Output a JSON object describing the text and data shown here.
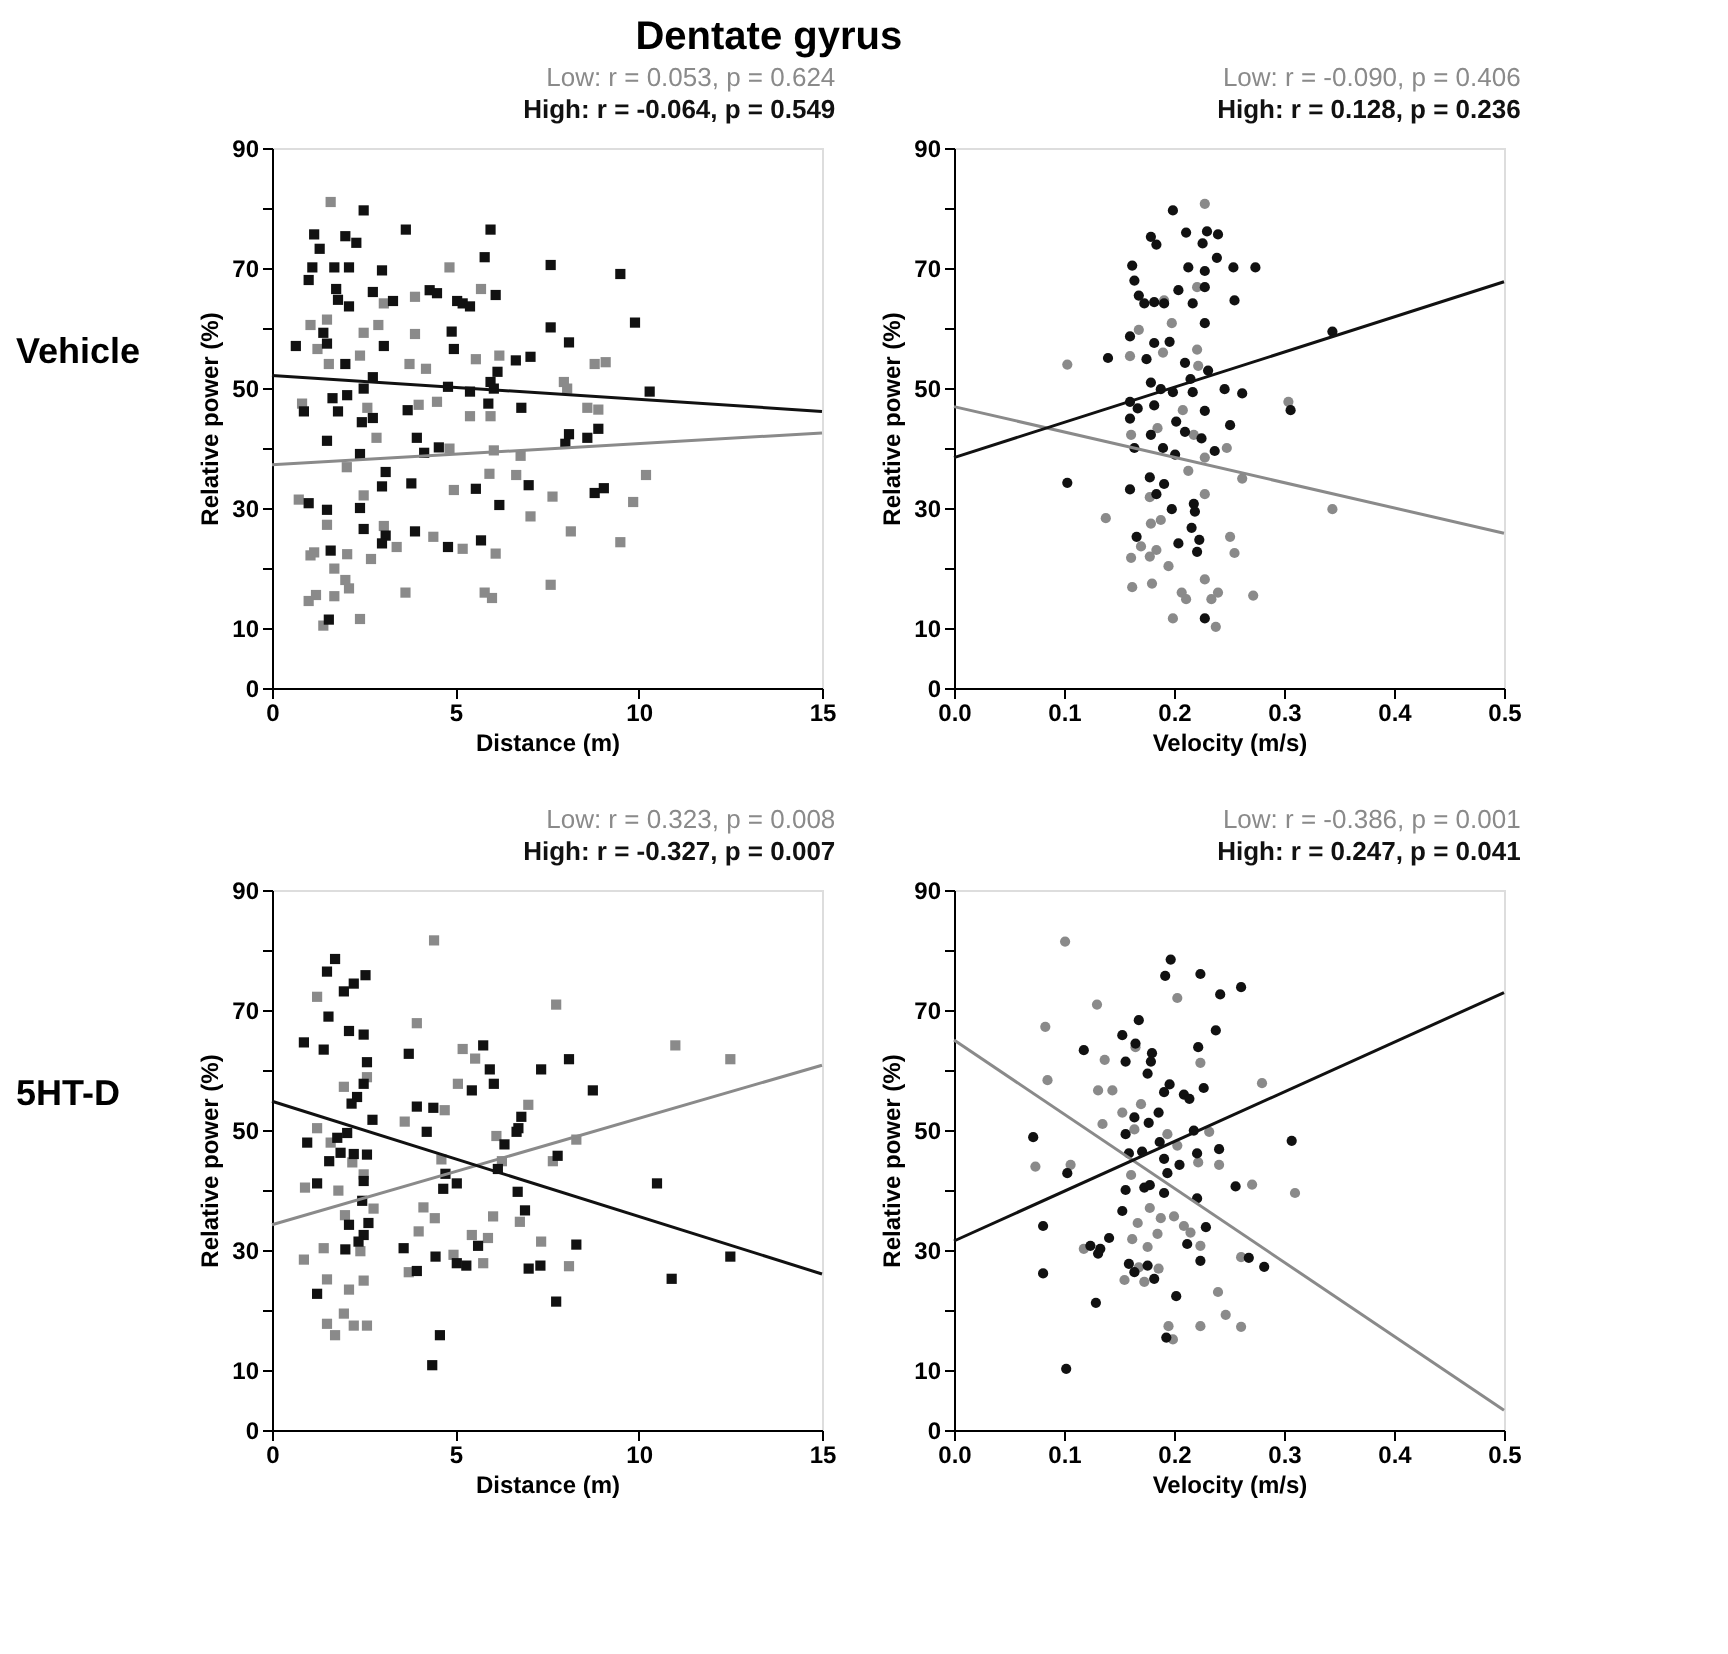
{
  "chart_data": [
    {
      "type": "scatter",
      "title": "Dentate gyrus",
      "annotations": [
        "Vehicle"
      ],
      "xlabel": "Distance (m)",
      "ylabel": "Relative power (%)",
      "marker": "square",
      "grid": false,
      "xlim": [
        0,
        15
      ],
      "xticks": [
        0,
        5,
        10,
        15
      ],
      "ylim": [
        0,
        90
      ],
      "yticks": [
        0,
        10,
        {
          "value": 20,
          "label": null
        },
        30,
        {
          "value": 40,
          "label": null
        },
        50,
        {
          "value": 60,
          "label": null
        },
        70,
        {
          "value": 80,
          "label": null
        },
        90
      ],
      "series": [
        {
          "name": "Low: r = 0.053, p = 0.624",
          "color": "#8a8a8a",
          "x": [
            1.6,
            4.84,
            5.7,
            3.9,
            3.05,
            1.05,
            1.5,
            2.5,
            2.9,
            3.9,
            1.24,
            2.4,
            1.55,
            3.75,
            4.2,
            5.56,
            6.2,
            8.8,
            9.1,
            7.96,
            8.05,
            0.82,
            2.6,
            4,
            4.5,
            5.96,
            5.4,
            8.6,
            8.9,
            2.85,
            4.84,
            6.05,
            6.78,
            2.04,
            5.93,
            6.66,
            10.2,
            2.5,
            4.96,
            0.73,
            1.5,
            3.05,
            7.05,
            7.65,
            8.15,
            9.85,
            9.5,
            1.05,
            1.15,
            2.05,
            2.7,
            3.4,
            4.4,
            5.2,
            6.1,
            1.7,
            2.0,
            2.1,
            1.0,
            1.2,
            1.7,
            2.4,
            1.4,
            3.64,
            5.8,
            6.0,
            7.6
          ],
          "values": [
            81,
            70.1,
            66.5,
            65.2,
            64.1,
            60.5,
            61.4,
            59.2,
            60.5,
            59,
            56.5,
            55.4,
            54,
            54,
            53.2,
            54.8,
            55.4,
            54,
            54.3,
            51,
            49.9,
            47.4,
            46.7,
            47.2,
            47.7,
            45.3,
            45.3,
            46.7,
            46.4,
            41.7,
            39.9,
            39.6,
            38.7,
            36.8,
            35.7,
            35.5,
            35.5,
            32.1,
            33,
            31.4,
            27.2,
            27,
            28.6,
            31.9,
            26.1,
            31,
            24.3,
            22.1,
            22.6,
            22.3,
            21.5,
            23.5,
            25.2,
            23.2,
            22.4,
            19.9,
            18,
            16.6,
            14.5,
            15.5,
            15.3,
            11.5,
            10.4,
            15.9,
            15.9,
            15,
            17.2
          ]
        },
        {
          "name": "High: r = -0.064, p = 0.549",
          "color": "#111111",
          "x": [
            2.5,
            1.15,
            2.0,
            2.3,
            1.3,
            3.65,
            5.96,
            5.8,
            7.6,
            9.5,
            1.1,
            1.7,
            2.1,
            3.0,
            1.0,
            1.75,
            1.8,
            2.1,
            2.75,
            3.3,
            4.3,
            4.5,
            5.05,
            5.2,
            5.4,
            6.1,
            9.9,
            7.6,
            4.9,
            4.96,
            8.1,
            3.05,
            0.65,
            1.4,
            1.5,
            2.0,
            6.65,
            7.05,
            2.75,
            2.5,
            6.15,
            5.96,
            6.05,
            4.8,
            5.4,
            5.9,
            10.3,
            1.65,
            0.87,
            1.8,
            2.05,
            2.45,
            2.75,
            3.7,
            6.8,
            1.5,
            3.95,
            4.15,
            4.55,
            8.1,
            8.6,
            8.9,
            8,
            2.4,
            3.1,
            3.0,
            3.8,
            5.56,
            7.0,
            8.8,
            9.05,
            6.2,
            1,
            1.5,
            2.4,
            2.5,
            3.1,
            3.0,
            3.9,
            4.8,
            5.7,
            1.6,
            1.55
          ],
          "values": [
            79.6,
            75.6,
            75.3,
            74.2,
            73.2,
            76.4,
            76.4,
            71.8,
            70.5,
            69,
            70.1,
            70.1,
            70.1,
            69.6,
            68,
            66.5,
            64.7,
            63.6,
            66,
            64.5,
            66.3,
            65.8,
            64.5,
            64.1,
            63.6,
            65.5,
            60.9,
            60.1,
            59.4,
            56.5,
            57.6,
            57,
            57,
            59.2,
            57.4,
            54,
            54.6,
            55.2,
            51.8,
            49.9,
            52.7,
            51,
            49.9,
            50.2,
            49.4,
            47.4,
            49.4,
            48.3,
            46.1,
            46.1,
            48.8,
            44.3,
            45,
            46.3,
            46.7,
            41.2,
            41.7,
            39.2,
            40.1,
            42.3,
            41.7,
            43.2,
            40.7,
            39,
            36,
            33.6,
            34.1,
            33.2,
            33.8,
            32.5,
            33.3,
            30.5,
            30.8,
            29.7,
            30,
            26.5,
            25.4,
            24.1,
            26.1,
            23.5,
            24.6,
            22.9,
            11.4
          ]
        },
        {
          "type": "line",
          "marker": "none",
          "color": "#8a8a8a",
          "x": [
            0,
            15
          ],
          "values": [
            37.2,
            42.5
          ]
        },
        {
          "type": "line",
          "marker": "none",
          "color": "#111111",
          "x": [
            0,
            15
          ],
          "values": [
            52.1,
            46.1
          ]
        }
      ]
    },
    {
      "type": "scatter",
      "xlabel": "Velocity (m/s)",
      "ylabel": "Relative power (%)",
      "marker": "circle",
      "grid": false,
      "xlim": [
        0,
        0.5
      ],
      "xticks": [
        {
          "value": 0,
          "label": "0.0"
        },
        0.1,
        0.2,
        0.3,
        0.4,
        0.5
      ],
      "ylim": [
        0,
        90
      ],
      "yticks": [
        0,
        10,
        {
          "value": 20,
          "label": null
        },
        30,
        {
          "value": 40,
          "label": null
        },
        50,
        {
          "value": 60,
          "label": null
        },
        70,
        {
          "value": 80,
          "label": null
        },
        90
      ],
      "series": [
        {
          "name": "Low: r = -0.090, p = 0.406",
          "color": "#8a8a8a",
          "x": [
            0.228,
            0.191,
            0.221,
            0.103,
            0.16,
            0.19,
            0.221,
            0.222,
            0.198,
            0.168,
            0.304,
            0.185,
            0.208,
            0.161,
            0.218,
            0.248,
            0.213,
            0.228,
            0.262,
            0.344,
            0.138,
            0.179,
            0.188,
            0.17,
            0.184,
            0.161,
            0.178,
            0.195,
            0.251,
            0.255,
            0.162,
            0.18,
            0.207,
            0.211,
            0.228,
            0.234,
            0.24,
            0.272,
            0.199,
            0.238,
            0.178,
            0.228
          ],
          "values": [
            80.7,
            64.6,
            66.8,
            53.9,
            55.3,
            55.9,
            56.4,
            53.7,
            60.8,
            59.7,
            47.7,
            43.3,
            46.3,
            42.2,
            42.2,
            40,
            36.2,
            38.4,
            34.9,
            29.8,
            28.3,
            27.4,
            28,
            23.6,
            23,
            21.7,
            21.9,
            20.3,
            25.2,
            22.5,
            16.8,
            17.4,
            15.9,
            14.8,
            18.1,
            14.8,
            15.9,
            15.4,
            11.6,
            10.2,
            31.8,
            32.3
          ]
        },
        {
          "name": "High: r = 0.128, p = 0.236",
          "color": "#111111",
          "x": [
            0.199,
            0.179,
            0.184,
            0.211,
            0.23,
            0.24,
            0.226,
            0.239,
            0.254,
            0.274,
            0.162,
            0.213,
            0.228,
            0.164,
            0.204,
            0.228,
            0.168,
            0.173,
            0.182,
            0.191,
            0.217,
            0.255,
            0.228,
            0.16,
            0.182,
            0.196,
            0.344,
            0.14,
            0.175,
            0.21,
            0.231,
            0.215,
            0.179,
            0.188,
            0.199,
            0.217,
            0.246,
            0.262,
            0.306,
            0.16,
            0.167,
            0.182,
            0.228,
            0.16,
            0.202,
            0.21,
            0.251,
            0.179,
            0.225,
            0.164,
            0.19,
            0.201,
            0.237,
            0.103,
            0.16,
            0.178,
            0.191,
            0.184,
            0.198,
            0.218,
            0.219,
            0.166,
            0.204,
            0.216,
            0.223,
            0.221,
            0.228
          ],
          "values": [
            79.6,
            75.2,
            73.9,
            75.9,
            76.1,
            75.6,
            74.1,
            71.7,
            70.1,
            70.1,
            70.4,
            70.1,
            69.5,
            67.9,
            66.3,
            66.8,
            65.4,
            64.1,
            64.3,
            64.1,
            64.1,
            64.6,
            60.8,
            58.6,
            57.5,
            57.7,
            59.4,
            55,
            54.8,
            54.2,
            52.9,
            51.5,
            50.9,
            49.8,
            49.3,
            49.3,
            49.8,
            49.1,
            46.3,
            47.7,
            46.6,
            47.1,
            46.2,
            44.9,
            44.4,
            42.7,
            43.8,
            42.2,
            41.6,
            40,
            40,
            38.9,
            39.5,
            34.2,
            33.1,
            35.1,
            34,
            32.3,
            29.8,
            30.7,
            29.4,
            25.2,
            24.1,
            26.7,
            24.7,
            22.7,
            11.6
          ]
        },
        {
          "type": "line",
          "marker": "none",
          "color": "#8a8a8a",
          "x": [
            0,
            0.5
          ],
          "values": [
            46.9,
            25.8
          ]
        },
        {
          "type": "line",
          "marker": "none",
          "color": "#111111",
          "x": [
            0,
            0.5
          ],
          "values": [
            38.4,
            67.7
          ]
        }
      ]
    },
    {
      "type": "scatter",
      "annotations": [
        "5HT-D"
      ],
      "xlabel": "Distance (m)",
      "ylabel": "Relative power (%)",
      "marker": "square",
      "grid": false,
      "xlim": [
        0,
        15
      ],
      "xticks": [
        0,
        5,
        10,
        15
      ],
      "ylim": [
        0,
        90
      ],
      "yticks": [
        0,
        10,
        {
          "value": 20,
          "label": null
        },
        30,
        {
          "value": 40,
          "label": null
        },
        50,
        {
          "value": 60,
          "label": null
        },
        70,
        {
          "value": 80,
          "label": null
        },
        90
      ],
      "series": [
        {
          "name": "Low: r = 0.323, p = 0.008",
          "color": "#8a8a8a",
          "x": [
            4.42,
            1.23,
            7.75,
            3.95,
            11,
            12.5,
            5.2,
            5.54,
            5.07,
            1.96,
            2.59,
            4.71,
            3.62,
            6.99,
            6.12,
            8.3,
            1.23,
            1.6,
            2.19,
            4.62,
            6.27,
            7.66,
            2.5,
            0.9,
            1.81,
            4.13,
            4.44,
            2.77,
            6.03,
            1.99,
            6.76,
            4.0,
            5.45,
            5.89,
            1.41,
            2.41,
            7.34,
            0.87,
            4.95,
            5.76,
            3.73,
            8.1,
            2.1,
            1.5,
            2.5,
            1.96,
            1.5,
            1.72,
            2.23,
            2.59
          ],
          "values": [
            81.6,
            72.2,
            70.9,
            67.8,
            64.1,
            61.8,
            63.5,
            61.9,
            57.7,
            57.2,
            58.8,
            53.3,
            51.4,
            54.2,
            49,
            48.4,
            50.3,
            47.9,
            44.6,
            45.1,
            44.8,
            44.8,
            42.6,
            40.4,
            39.9,
            37.1,
            35.3,
            36.9,
            35.6,
            35.8,
            34.7,
            33.1,
            32.5,
            32,
            30.3,
            29.8,
            31.4,
            28.4,
            29.2,
            27.8,
            26.3,
            27.3,
            23.4,
            25.1,
            24.9,
            19.4,
            17.7,
            15.8,
            17.4,
            17.4
          ]
        },
        {
          "name": "High: r = -0.327, p = 0.007",
          "color": "#111111",
          "x": [
            1.72,
            1.5,
            2.55,
            2.23,
            1.96,
            1.54,
            2.1,
            2.5,
            0.87,
            1.41,
            3.73,
            5.76,
            5.94,
            6.05,
            5.45,
            7.34,
            8.1,
            8.75,
            2.59,
            2.5,
            2.32,
            2.17,
            2.74,
            3.95,
            4.4,
            4.22,
            2.05,
            1.78,
            0.96,
            6.8,
            6.72,
            6.67,
            6.34,
            6.16,
            7.79,
            1.87,
            2.23,
            2.59,
            1.56,
            1.23,
            2.5,
            2.46,
            4.73,
            5.04,
            4.67,
            6.7,
            6.9,
            10.5,
            2.1,
            2.63,
            2.5,
            2.36,
            2.0,
            3.59,
            5.62,
            8.3,
            12.5,
            3.95,
            4.46,
            5.04,
            5.3,
            7.0,
            7.32,
            10.9,
            7.75,
            1.23,
            4.58,
            4.37
          ],
          "values": [
            78.5,
            76.4,
            75.8,
            74.4,
            73.1,
            68.9,
            66.5,
            65.9,
            64.6,
            63.4,
            62.7,
            64.1,
            60.1,
            57.7,
            56.6,
            60.1,
            61.8,
            56.6,
            61.3,
            57.7,
            55.5,
            54.4,
            51.7,
            53.9,
            53.7,
            49.7,
            49.5,
            48.7,
            47.9,
            52.2,
            50.3,
            49.7,
            47.6,
            43.5,
            45.7,
            46.2,
            46,
            45.9,
            44.8,
            41.1,
            41.5,
            38.2,
            42.7,
            41.1,
            40.2,
            39.7,
            36.6,
            41.1,
            34.2,
            34.5,
            32.5,
            31.4,
            30.1,
            30.3,
            30.7,
            30.9,
            28.9,
            26.5,
            28.9,
            27.8,
            27.4,
            26.9,
            27.4,
            25.2,
            21.4,
            22.7,
            15.8,
            10.8
          ]
        },
        {
          "type": "line",
          "marker": "none",
          "color": "#8a8a8a",
          "x": [
            0,
            15
          ],
          "values": [
            34.2,
            60.8
          ]
        },
        {
          "type": "line",
          "marker": "none",
          "color": "#111111",
          "x": [
            0,
            15
          ],
          "values": [
            54.8,
            26.0
          ]
        }
      ]
    },
    {
      "type": "scatter",
      "xlabel": "Velocity (m/s)",
      "ylabel": "Relative power (%)",
      "marker": "circle",
      "grid": false,
      "xlim": [
        0,
        0.5
      ],
      "xticks": [
        {
          "value": 0,
          "label": "0.0"
        },
        0.1,
        0.2,
        0.3,
        0.4,
        0.5
      ],
      "ylim": [
        0,
        90
      ],
      "yticks": [
        0,
        10,
        {
          "value": 20,
          "label": null
        },
        30,
        {
          "value": 40,
          "label": null
        },
        50,
        {
          "value": 60,
          "label": null
        },
        70,
        {
          "value": 80,
          "label": null
        },
        90
      ],
      "series": [
        {
          "name": "Low: r = -0.386, p = 0.001",
          "color": "#8a8a8a",
          "x": [
            0.101,
            0.203,
            0.13,
            0.083,
            0.165,
            0.137,
            0.224,
            0.085,
            0.131,
            0.144,
            0.28,
            0.153,
            0.17,
            0.135,
            0.164,
            0.194,
            0.232,
            0.203,
            0.106,
            0.074,
            0.241,
            0.161,
            0.222,
            0.271,
            0.31,
            0.178,
            0.188,
            0.2,
            0.209,
            0.167,
            0.162,
            0.224,
            0.118,
            0.176,
            0.185,
            0.215,
            0.261,
            0.168,
            0.155,
            0.173,
            0.186,
            0.24,
            0.247,
            0.224,
            0.195,
            0.261,
            0.199
          ],
          "values": [
            81.4,
            72,
            70.9,
            67.2,
            63.8,
            61.7,
            61.2,
            58.3,
            56.6,
            56.6,
            57.8,
            52.9,
            54.3,
            51,
            50.1,
            49.3,
            49.7,
            47.4,
            44.2,
            43.9,
            44.2,
            42.5,
            44.6,
            40.9,
            39.5,
            37,
            35.3,
            35.6,
            34,
            34.5,
            31.8,
            30.7,
            30.2,
            30.5,
            32.7,
            32.9,
            28.8,
            27.1,
            25,
            24.7,
            26.9,
            23,
            19.2,
            17.3,
            17.3,
            17.2,
            15.1
          ]
        },
        {
          "name": "High: r = 0.247, p = 0.041",
          "color": "#111111",
          "x": [
            0.197,
            0.192,
            0.224,
            0.261,
            0.242,
            0.168,
            0.238,
            0.153,
            0.165,
            0.222,
            0.118,
            0.18,
            0.179,
            0.156,
            0.176,
            0.196,
            0.191,
            0.209,
            0.227,
            0.214,
            0.186,
            0.164,
            0.177,
            0.156,
            0.187,
            0.218,
            0.221,
            0.241,
            0.307,
            0.072,
            0.159,
            0.171,
            0.191,
            0.205,
            0.103,
            0.194,
            0.156,
            0.173,
            0.178,
            0.191,
            0.221,
            0.256,
            0.153,
            0.081,
            0.229,
            0.212,
            0.124,
            0.133,
            0.141,
            0.131,
            0.159,
            0.164,
            0.176,
            0.182,
            0.224,
            0.268,
            0.282,
            0.081,
            0.129,
            0.202,
            0.193,
            0.102
          ],
          "values": [
            78.4,
            75.7,
            76,
            73.8,
            72.6,
            68.3,
            66.6,
            65.8,
            64.4,
            63.8,
            63.3,
            62.8,
            61.4,
            61.4,
            59.4,
            57.6,
            56.3,
            55.9,
            57,
            55.2,
            52.9,
            52.1,
            51.2,
            49.3,
            48,
            49.9,
            46.1,
            46.8,
            48.2,
            48.8,
            46.1,
            46.4,
            45.2,
            44.2,
            42.8,
            42.8,
            40,
            40.4,
            40.8,
            39.5,
            38.6,
            40.6,
            36.5,
            34,
            33.8,
            31,
            30.7,
            30.2,
            32,
            29.4,
            27.7,
            26.3,
            27.4,
            25.2,
            28.2,
            28.7,
            27.2,
            26.1,
            21.2,
            22.3,
            15.4,
            10.2
          ]
        },
        {
          "type": "line",
          "marker": "none",
          "color": "#8a8a8a",
          "x": [
            0,
            0.5
          ],
          "values": [
            65,
            3.3
          ]
        },
        {
          "type": "line",
          "marker": "none",
          "color": "#111111",
          "x": [
            0,
            0.5
          ],
          "values": [
            31.5,
            72.9
          ]
        }
      ]
    }
  ]
}
